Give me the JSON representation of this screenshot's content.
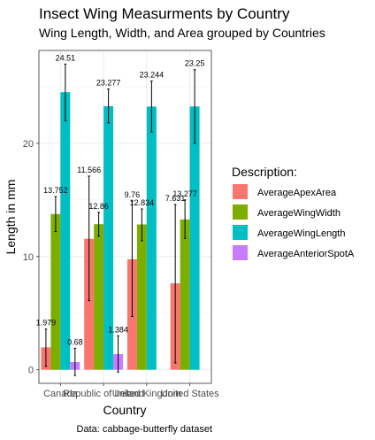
{
  "chart_data": {
    "type": "bar",
    "title": "Insect Wing Measurments by Country",
    "subtitle": "Wing Length, Width, and Area grouped by Countries",
    "xlabel": "Country",
    "ylabel": "Length in mm",
    "caption": "Data: cabbage-butterfly dataset",
    "ylim": [
      -1.2,
      28.2
    ],
    "y_ticks": [
      0,
      10,
      20
    ],
    "grid": true,
    "legend_title": "Description:",
    "legend_position": "right",
    "categories": [
      "Canada",
      "Republic of Ireland",
      "United Kingdom",
      "United States"
    ],
    "series": [
      {
        "name": "AverageApexArea",
        "color": "#F8766D",
        "values": [
          1.979,
          11.566,
          9.76,
          7.631
        ],
        "labels": [
          "1.979",
          "11.566",
          "9.76",
          "7.631"
        ],
        "error_low": [
          0.3,
          6.1,
          4.7,
          0.6
        ],
        "error_high": [
          3.6,
          17.1,
          14.9,
          14.6
        ]
      },
      {
        "name": "AverageWingWidth",
        "color": "#7CAE00",
        "values": [
          13.752,
          12.86,
          12.834,
          13.277
        ],
        "labels": [
          "13.752",
          "12.86",
          "12.834",
          "13.277"
        ],
        "error_low": [
          12.2,
          11.8,
          11.4,
          11.6
        ],
        "error_high": [
          15.3,
          13.9,
          14.2,
          15.0
        ]
      },
      {
        "name": "AverageWingLength",
        "color": "#00BFC4",
        "values": [
          24.51,
          23.277,
          23.244,
          23.25
        ],
        "labels": [
          "24.51",
          "23.277",
          "23.244",
          "23.25"
        ],
        "error_low": [
          22.0,
          21.8,
          21.0,
          20.0
        ],
        "error_high": [
          27.0,
          24.8,
          25.5,
          26.5
        ]
      },
      {
        "name": "AverageAnteriorSpotA",
        "color": "#C77CFF",
        "values": [
          0.68,
          1.384,
          null,
          null
        ],
        "labels": [
          "0.68",
          "1.384",
          "",
          ""
        ],
        "error_low": [
          -0.5,
          -0.2,
          null,
          null
        ],
        "error_high": [
          1.9,
          3.0,
          null,
          null
        ]
      }
    ]
  }
}
